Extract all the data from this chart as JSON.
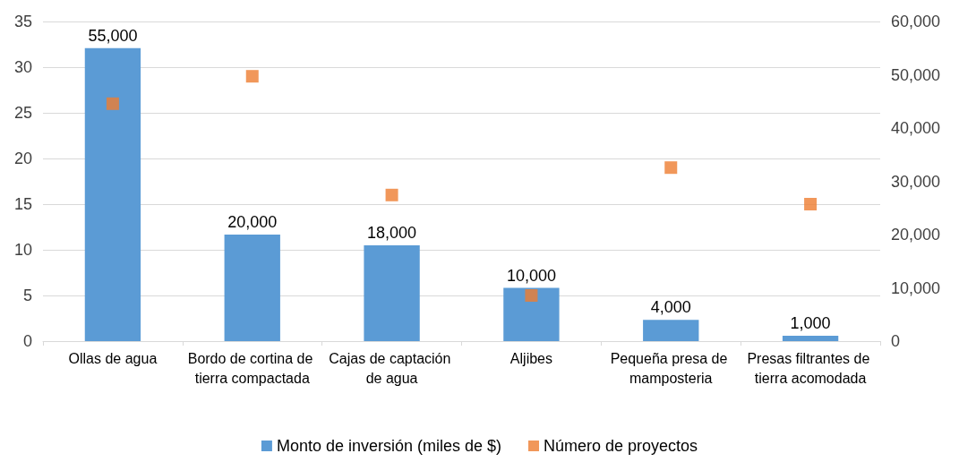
{
  "chart_data": {
    "type": "bar",
    "categories": [
      "Ollas de agua",
      "Bordo de cortina de tierra compactada",
      "Cajas de captación de agua",
      "Aljibes",
      "Pequeña presa de mamposteria",
      "Presas filtrantes de tierra acomodada"
    ],
    "series": [
      {
        "name": "Monto de inversión (miles de $)",
        "axis": "y2",
        "color": "#5b9bd5",
        "values": [
          55000,
          20000,
          18000,
          10000,
          4000,
          1000
        ],
        "value_labels": [
          "55,000",
          "20,000",
          "18,000",
          "10,000",
          "4,000",
          "1,000"
        ]
      },
      {
        "name": "Número de proyectos",
        "type": "scatter",
        "marker": "square",
        "color": "#ed7d31",
        "x": [
          "Ollas de agua",
          "Bordo de cortina de tierra compactada",
          "Cajas de captación de agua",
          "Aljibes",
          "Pequeña presa de mamposteria",
          "Presas filtrantes de tierra acomodada"
        ],
        "values": [
          26,
          29,
          16,
          5,
          19,
          15
        ]
      }
    ],
    "ylim": [
      0,
      35
    ],
    "yticks": [
      0,
      5,
      10,
      15,
      20,
      25,
      30,
      35
    ],
    "y2lim": [
      0,
      60000
    ],
    "y2ticks": [
      {
        "value": 0,
        "label": "0"
      },
      {
        "value": 10000,
        "label": "10,000"
      },
      {
        "value": 20000,
        "label": "20,000"
      },
      {
        "value": 30000,
        "label": "30,000"
      },
      {
        "value": 40000,
        "label": "40,000"
      },
      {
        "value": 50000,
        "label": "50,000"
      },
      {
        "value": 60000,
        "label": "60,000"
      }
    ],
    "grid": "y",
    "legend": "bottom"
  }
}
